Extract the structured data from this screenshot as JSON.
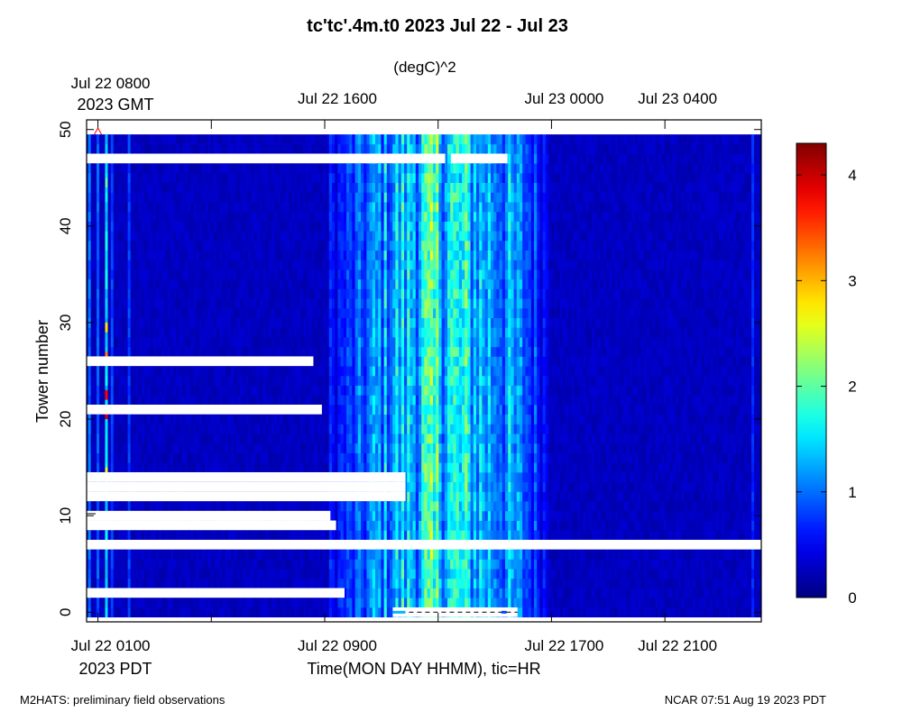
{
  "chart_data": {
    "type": "heatmap",
    "title": "tc'tc'.4m.t0 2023 Jul 22 - Jul 23",
    "units_label": "(degC)^2",
    "ylabel": "Tower number",
    "xlabel": "Time(MON DAY HHMM), tic=HR",
    "ylim": [
      -1,
      51
    ],
    "yticks": [
      0,
      10,
      20,
      30,
      40,
      50
    ],
    "x_range_pdt_hours": [
      24.6,
      48.4
    ],
    "bottom_axis": {
      "timezone_label": "2023 PDT",
      "ticks": [
        {
          "label": "Jul 22 0100",
          "pdt_hour": 25
        },
        {
          "label": "Jul 22 0900",
          "pdt_hour": 33
        },
        {
          "label": "Jul 22 1700",
          "pdt_hour": 41
        },
        {
          "label": "Jul 22 2100",
          "pdt_hour": 45
        }
      ]
    },
    "top_axis": {
      "timezone_label": "2023 GMT",
      "ticks": [
        {
          "label": "Jul 22 0800",
          "pdt_hour": 25
        },
        {
          "label": "Jul 22 1600",
          "pdt_hour": 33
        },
        {
          "label": "Jul 23 0000",
          "pdt_hour": 41
        },
        {
          "label": "Jul 23 0400",
          "pdt_hour": 45
        }
      ]
    },
    "minor_tick_hours_pdt": [
      29,
      37
    ],
    "colorbar": {
      "min": 0,
      "max": 4.3,
      "ticks": [
        0,
        1,
        2,
        3,
        4
      ],
      "colormap": "jet"
    },
    "profile": {
      "description_points_pdt_hour_to_variance": [
        [
          24.6,
          0.25
        ],
        [
          32.0,
          0.35
        ],
        [
          33.0,
          0.45
        ],
        [
          34.0,
          0.7
        ],
        [
          35.0,
          1.1
        ],
        [
          36.0,
          1.35
        ],
        [
          37.0,
          1.55
        ],
        [
          38.0,
          1.4
        ],
        [
          39.0,
          1.2
        ],
        [
          40.0,
          0.9
        ],
        [
          41.0,
          0.45
        ],
        [
          42.0,
          0.3
        ],
        [
          48.4,
          0.25
        ]
      ]
    },
    "bright_columns": [
      {
        "pdt_hour": 24.7,
        "value": 1.0
      },
      {
        "pdt_hour": 25.3,
        "value": 1.5
      },
      {
        "pdt_hour": 25.0,
        "value": 0.9
      },
      {
        "pdt_hour": 25.5,
        "value": 0.8
      },
      {
        "pdt_hour": 26.1,
        "value": 0.8
      },
      {
        "pdt_hour": 48.1,
        "value": 0.7
      }
    ],
    "missing_data": [
      {
        "tower": 47,
        "from_pdt_hour": 24.6,
        "to_pdt_hour": 37.25
      },
      {
        "tower": 47,
        "from_pdt_hour": 37.45,
        "to_pdt_hour": 39.45
      },
      {
        "tower": 26,
        "from_pdt_hour": 24.6,
        "to_pdt_hour": 32.6
      },
      {
        "tower": 21,
        "from_pdt_hour": 24.6,
        "to_pdt_hour": 32.9
      },
      {
        "tower": 12,
        "from_pdt_hour": 24.6,
        "to_pdt_hour": 35.85
      },
      {
        "tower": 13,
        "from_pdt_hour": 24.6,
        "to_pdt_hour": 35.85
      },
      {
        "tower": 14,
        "from_pdt_hour": 24.6,
        "to_pdt_hour": 35.85
      },
      {
        "tower": 10,
        "from_pdt_hour": 24.6,
        "to_pdt_hour": 33.2
      },
      {
        "tower": 9,
        "from_pdt_hour": 24.6,
        "to_pdt_hour": 33.4
      },
      {
        "tower": 7,
        "from_pdt_hour": 24.6,
        "to_pdt_hour": 48.4
      },
      {
        "tower": 2,
        "from_pdt_hour": 24.6,
        "to_pdt_hour": 33.7
      },
      {
        "tower": 0,
        "from_pdt_hour": 35.4,
        "to_pdt_hour": 39.8
      }
    ],
    "grid": false,
    "legend": "colorbar-right"
  },
  "footer": {
    "left": "M2HATS: preliminary field observations",
    "right": "NCAR 07:51 Aug 19 2023 PDT"
  },
  "colors": {
    "missing": "#ffffff",
    "marker": "#ff0000",
    "axis": "#000000"
  }
}
